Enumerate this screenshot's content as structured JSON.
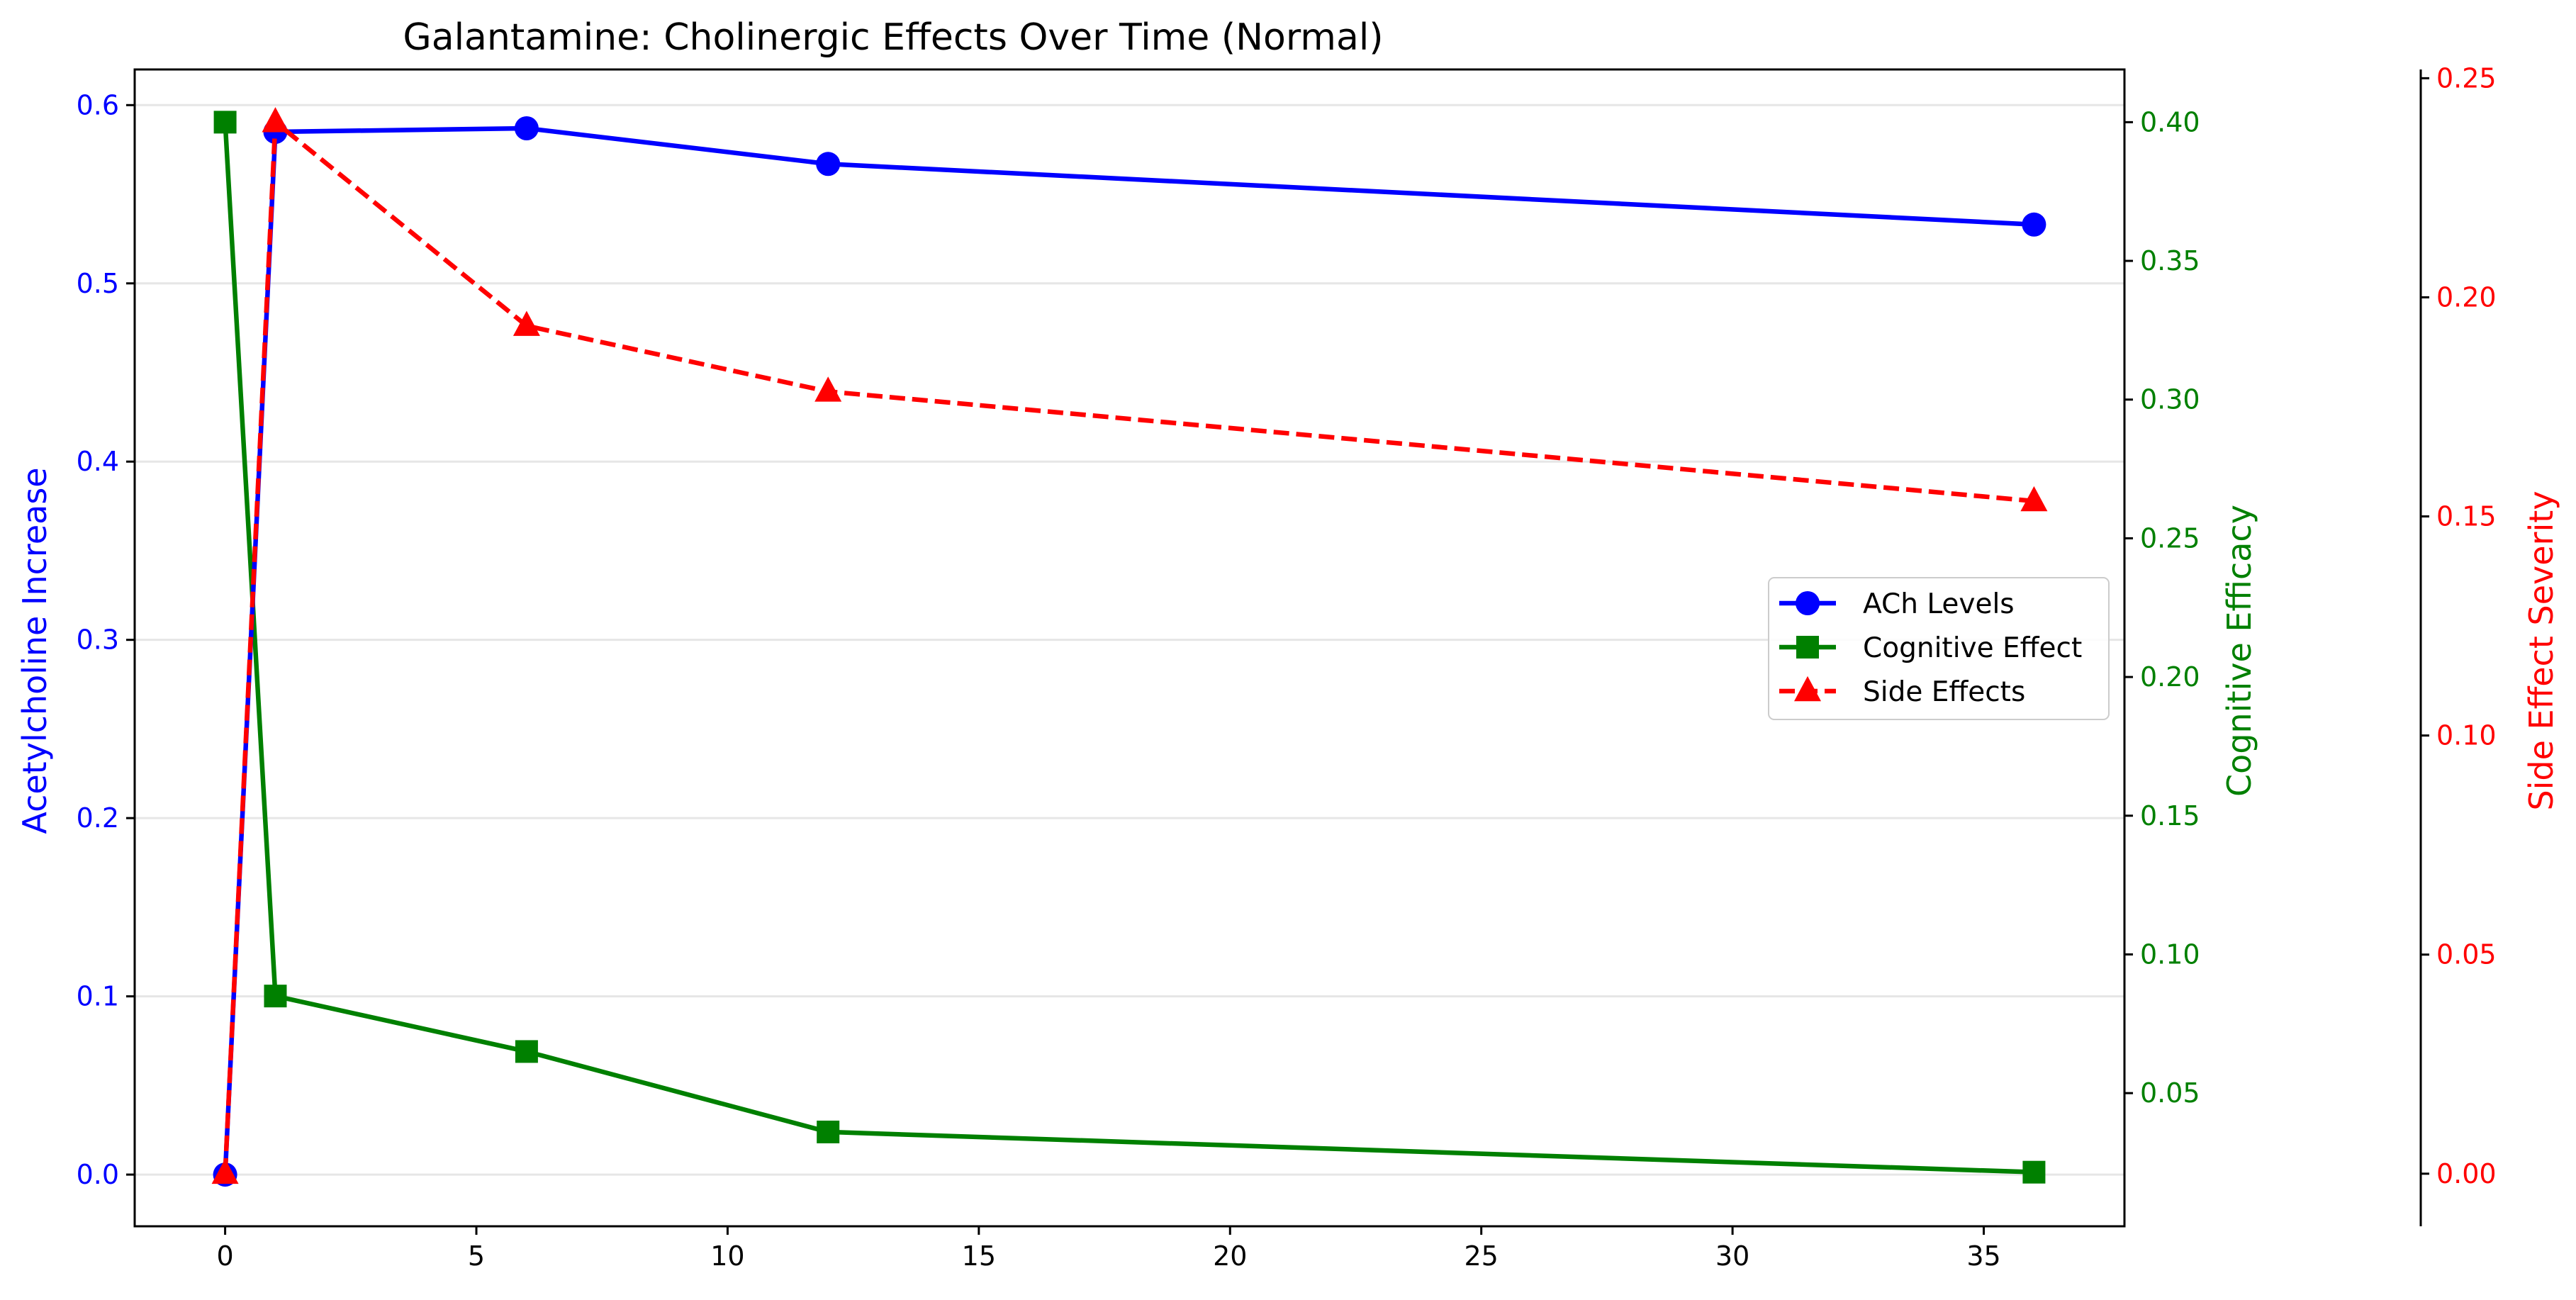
{
  "chart_data": {
    "type": "line",
    "title": "Galantamine: Cholinergic Effects Over Time (Normal)",
    "xlabel": "",
    "x": [
      0,
      1,
      6,
      12,
      36
    ],
    "xlim": [
      -1.8,
      37.8
    ],
    "xticks": [
      "0",
      "5",
      "10",
      "15",
      "20",
      "25",
      "30",
      "35"
    ],
    "grid": "horizontal",
    "legend_position": "center-right",
    "axes": {
      "left": {
        "label": "Acetylcholine Increase",
        "color": "#0000ff",
        "ylim": [
          -0.029,
          0.62
        ],
        "ticks": [
          "0.0",
          "0.1",
          "0.2",
          "0.3",
          "0.4",
          "0.5",
          "0.6"
        ]
      },
      "right": {
        "label": "Cognitive Efficacy",
        "color": "#008000",
        "ylim": [
          0.002,
          0.419
        ],
        "ticks": [
          "0.05",
          "0.10",
          "0.15",
          "0.20",
          "0.25",
          "0.30",
          "0.35",
          "0.40"
        ]
      },
      "far_right": {
        "label": "Side Effect Severity",
        "color": "#ff0000",
        "ylim": [
          -0.012,
          0.252
        ],
        "ticks": [
          "0.00",
          "0.05",
          "0.10",
          "0.15",
          "0.20",
          "0.25"
        ]
      }
    },
    "series": [
      {
        "name": "ACh Levels",
        "axis": "left",
        "color": "#0000ff",
        "line": "solid",
        "marker": "circle",
        "values": [
          0.0,
          0.585,
          0.587,
          0.567,
          0.533
        ]
      },
      {
        "name": "Cognitive Effect",
        "axis": "right",
        "color": "#008000",
        "line": "solid",
        "marker": "square",
        "values": [
          0.4,
          0.085,
          0.065,
          0.036,
          0.0215
        ]
      },
      {
        "name": "Side Effects",
        "axis": "far_right",
        "color": "#ff0000",
        "line": "dashed",
        "marker": "triangle",
        "values": [
          0.0,
          0.24,
          0.1935,
          0.1785,
          0.1535
        ]
      }
    ]
  }
}
